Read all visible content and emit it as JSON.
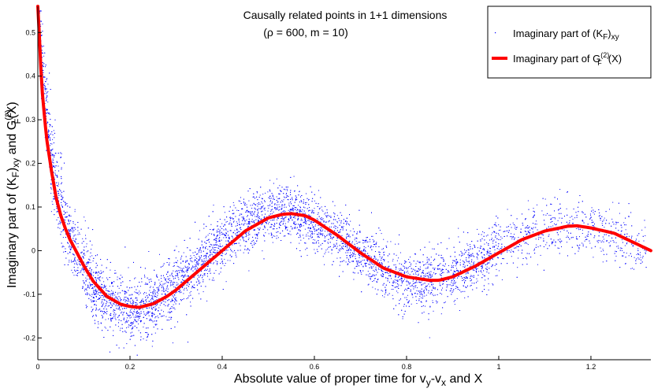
{
  "chart_data": {
    "type": "scatter",
    "title_line1": "Causally related points in 1+1 dimensions",
    "title_line2": "(ρ = 600, m = 10)",
    "xlabel": {
      "main": "Absolute value of proper time for v",
      "sub1": "y",
      "mid": "-v",
      "sub2": "x",
      "tail": " and X"
    },
    "ylabel": {
      "p1": "Imaginary part of (K",
      "sub1": "F",
      "p2": ")",
      "sub2": "xy",
      "p3": " and G",
      "sup": "(2)",
      "sub3": "F",
      "p4": "(X)"
    },
    "xlim": [
      0,
      1.33
    ],
    "ylim": [
      -0.25,
      0.56
    ],
    "xticks": [
      0,
      0.2,
      0.4,
      0.6,
      0.8,
      1,
      1.2
    ],
    "xtick_labels": [
      "0",
      "0.2",
      "0.4",
      "0.6",
      "0.8",
      "1",
      "1.2"
    ],
    "yticks": [
      -0.2,
      -0.1,
      0,
      0.1,
      0.2,
      0.3,
      0.4,
      0.5
    ],
    "ytick_labels": [
      "-0.2",
      "-0.1",
      "0",
      "0.1",
      "0.2",
      "0.3",
      "0.4",
      "0.5"
    ],
    "legend_position": "top-right",
    "legend": [
      {
        "p1": "Imaginary part of (K",
        "sub1": "F",
        "p2": ")",
        "sub2": "xy"
      },
      {
        "p1": "Imaginary part of G",
        "sup": "(2)",
        "sub1": "F",
        "p2": "(X)"
      }
    ],
    "series": [
      {
        "name": "Imaginary part of (K_F)_xy",
        "kind": "scatter",
        "color": "#0000ff",
        "note": "dense point cloud scattered about the red curve (spread ≈ ±0.04–0.06)",
        "x": [
          0.0,
          0.005,
          0.01,
          0.02,
          0.03,
          0.05,
          0.07,
          0.1,
          0.12,
          0.15,
          0.18,
          0.2,
          0.22,
          0.25,
          0.28,
          0.3,
          0.35,
          0.4,
          0.45,
          0.5,
          0.55,
          0.6,
          0.65,
          0.7,
          0.75,
          0.8,
          0.85,
          0.9,
          0.95,
          1.0,
          1.05,
          1.1,
          1.15,
          1.2,
          1.25,
          1.3
        ],
        "y": [
          0.56,
          0.5,
          0.4,
          0.3,
          0.2,
          0.1,
          0.03,
          -0.04,
          -0.08,
          -0.11,
          -0.125,
          -0.13,
          -0.13,
          -0.12,
          -0.1,
          -0.08,
          -0.03,
          0.02,
          0.06,
          0.083,
          0.085,
          0.065,
          0.03,
          -0.01,
          -0.045,
          -0.065,
          -0.07,
          -0.05,
          -0.02,
          0.01,
          0.035,
          0.05,
          0.057,
          0.055,
          0.04,
          0.01
        ]
      },
      {
        "name": "Imaginary part of G_F^(2)(X)",
        "kind": "line",
        "color": "#ff0000",
        "x": [
          0.0,
          0.002,
          0.005,
          0.008,
          0.01,
          0.015,
          0.02,
          0.03,
          0.04,
          0.05,
          0.06,
          0.07,
          0.08,
          0.1,
          0.12,
          0.15,
          0.18,
          0.2,
          0.22,
          0.25,
          0.28,
          0.3,
          0.35,
          0.4,
          0.45,
          0.5,
          0.53,
          0.55,
          0.58,
          0.6,
          0.65,
          0.7,
          0.75,
          0.8,
          0.85,
          0.87,
          0.9,
          0.95,
          1.0,
          1.05,
          1.1,
          1.15,
          1.17,
          1.2,
          1.25,
          1.3,
          1.33
        ],
        "y": [
          0.56,
          0.53,
          0.45,
          0.39,
          0.36,
          0.3,
          0.25,
          0.18,
          0.12,
          0.08,
          0.05,
          0.025,
          0.005,
          -0.035,
          -0.07,
          -0.105,
          -0.123,
          -0.128,
          -0.13,
          -0.122,
          -0.105,
          -0.09,
          -0.045,
          0.0,
          0.045,
          0.075,
          0.083,
          0.085,
          0.08,
          0.07,
          0.035,
          -0.005,
          -0.04,
          -0.06,
          -0.068,
          -0.068,
          -0.06,
          -0.035,
          -0.005,
          0.025,
          0.045,
          0.056,
          0.057,
          0.052,
          0.04,
          0.015,
          0.0
        ]
      }
    ]
  }
}
